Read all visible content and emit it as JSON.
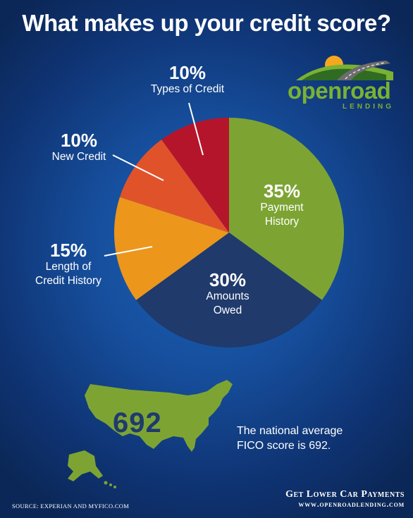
{
  "title": "What makes up your credit score?",
  "logo": {
    "word_open": "open",
    "word_road": "road",
    "sub": "LENDING"
  },
  "chart_data": {
    "type": "pie",
    "title": "What makes up your credit score?",
    "slices": [
      {
        "pct_label": "35%",
        "name": "Payment History",
        "name_lines": [
          "Payment",
          "History"
        ],
        "value": 35,
        "color": "#7da433"
      },
      {
        "pct_label": "30%",
        "name": "Amounts Owed",
        "name_lines": [
          "Amounts",
          "Owed"
        ],
        "value": 30,
        "color": "#1f3a6b"
      },
      {
        "pct_label": "15%",
        "name": "Length of Credit History",
        "name_lines": [
          "Length of",
          "Credit History"
        ],
        "value": 15,
        "color": "#ec961c"
      },
      {
        "pct_label": "10%",
        "name": "New Credit",
        "name_lines": [
          "New Credit"
        ],
        "value": 10,
        "color": "#e0532a"
      },
      {
        "pct_label": "10%",
        "name": "Types of Credit",
        "name_lines": [
          "Types of Credit"
        ],
        "value": 10,
        "color": "#b5152b"
      }
    ]
  },
  "national_average": {
    "score": "692",
    "text_lines": [
      "The national average",
      "FICO score is 692."
    ]
  },
  "source": "SOURCE: EXPERIAN AND MYFICO.COM",
  "promo": {
    "line1": "Get Lower Car Payments",
    "line2": "www.openroadlending.com"
  },
  "colors": {
    "map_green": "#7da433",
    "map_text": "#1e3a6e"
  }
}
